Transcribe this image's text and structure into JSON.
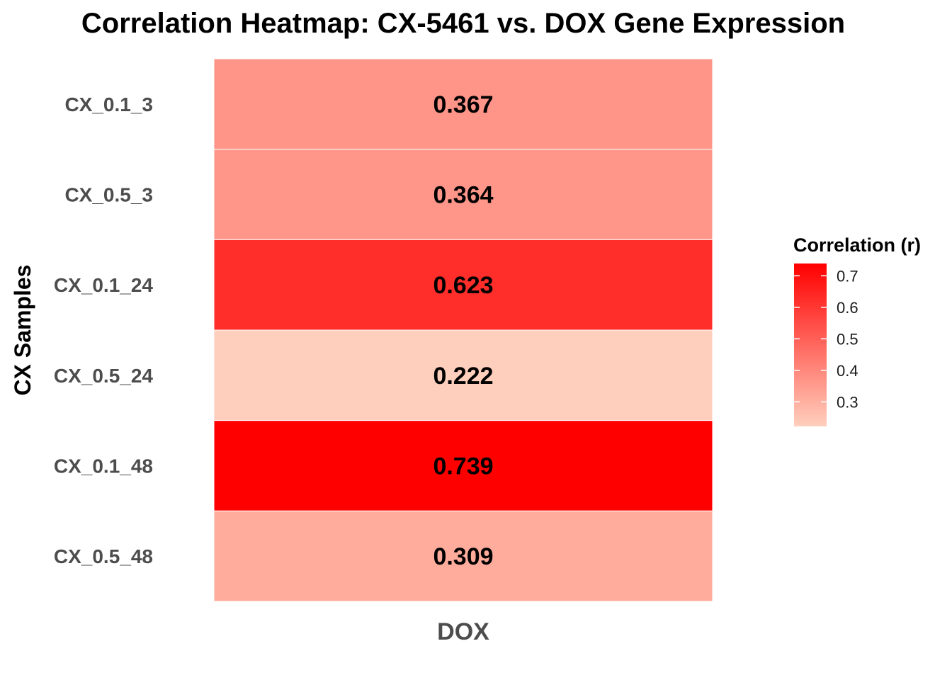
{
  "chart_data": {
    "type": "heatmap",
    "title": "Correlation Heatmap: CX-5461 vs. DOX Gene Expression",
    "xlabel": "",
    "ylabel": "CX Samples",
    "x_categories": [
      "DOX"
    ],
    "y_categories": [
      "CX_0.1_3",
      "CX_0.5_3",
      "CX_0.1_24",
      "CX_0.5_24",
      "CX_0.1_48",
      "CX_0.5_48"
    ],
    "values": [
      0.367,
      0.364,
      0.623,
      0.222,
      0.739,
      0.309
    ],
    "value_labels": [
      "0.367",
      "0.364",
      "0.623",
      "0.222",
      "0.739",
      "0.309"
    ],
    "color_scale": {
      "low": "#ffcfbd",
      "high": "#ff0000",
      "min": 0.222,
      "max": 0.739
    },
    "legend": {
      "title": "Correlation (r)",
      "placement": "right",
      "ticks": [
        0.3,
        0.4,
        0.5,
        0.6,
        0.7
      ],
      "tick_labels": [
        "0.3",
        "0.4",
        "0.5",
        "0.6",
        "0.7"
      ]
    },
    "grid": false
  }
}
